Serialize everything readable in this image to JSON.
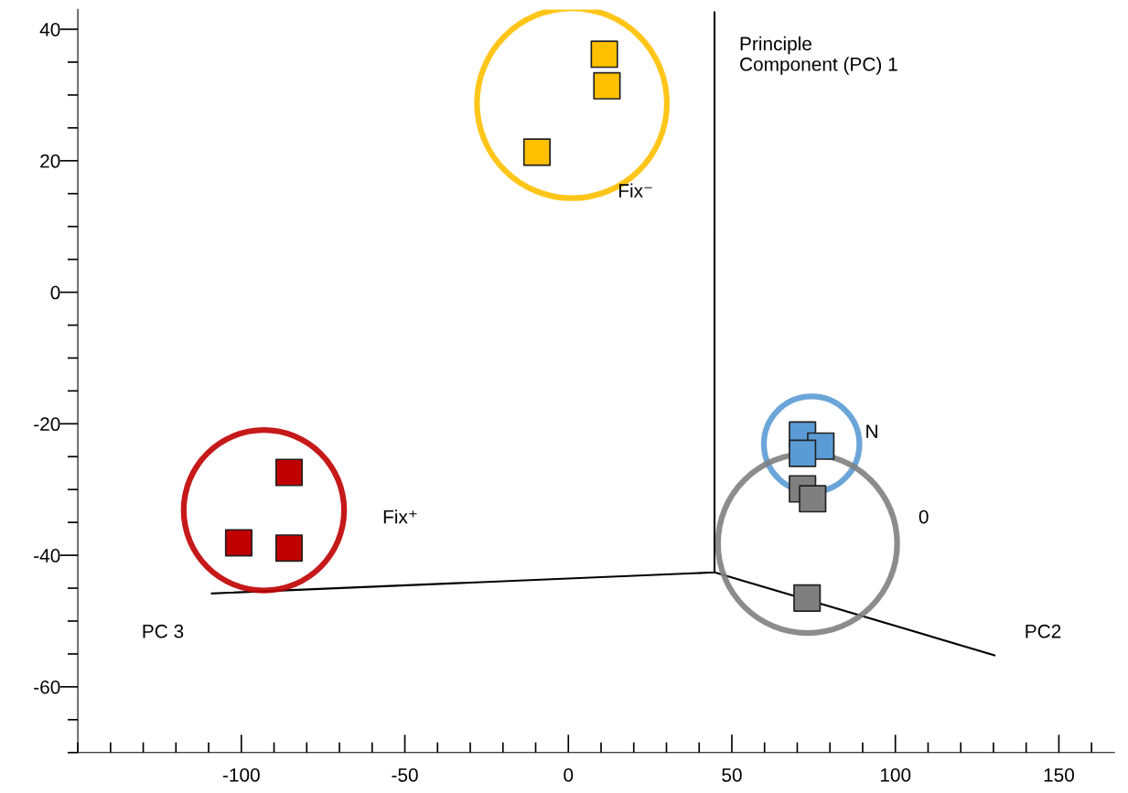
{
  "chart_data": {
    "type": "scatter",
    "marker": "square",
    "grid": false,
    "legend": false,
    "xlim": [
      -150,
      167
    ],
    "ylim": [
      -70,
      43
    ],
    "xticks": [
      {
        "value": -150,
        "label": null
      },
      {
        "value": -140,
        "label": null
      },
      {
        "value": -130,
        "label": null
      },
      {
        "value": -120,
        "label": null
      },
      {
        "value": -110,
        "label": null
      },
      {
        "value": -100,
        "label": "-100"
      },
      {
        "value": -90,
        "label": null
      },
      {
        "value": -80,
        "label": null
      },
      {
        "value": -70,
        "label": null
      },
      {
        "value": -60,
        "label": null
      },
      {
        "value": -50,
        "label": "-50"
      },
      {
        "value": -40,
        "label": null
      },
      {
        "value": -30,
        "label": null
      },
      {
        "value": -20,
        "label": null
      },
      {
        "value": -10,
        "label": null
      },
      0,
      {
        "value": 10,
        "label": null
      },
      {
        "value": 20,
        "label": null
      },
      {
        "value": 30,
        "label": null
      },
      {
        "value": 40,
        "label": null
      },
      50,
      {
        "value": 60,
        "label": null
      },
      {
        "value": 70,
        "label": null
      },
      {
        "value": 80,
        "label": null
      },
      {
        "value": 90,
        "label": null
      },
      100,
      {
        "value": 110,
        "label": null
      },
      {
        "value": 120,
        "label": null
      },
      {
        "value": 130,
        "label": null
      },
      {
        "value": 140,
        "label": null
      },
      150,
      {
        "value": 160,
        "label": null
      }
    ],
    "yticks": [
      {
        "value": -70,
        "label": null
      },
      {
        "value": -65,
        "label": null
      },
      {
        "value": -60,
        "label": "-60"
      },
      {
        "value": -55,
        "label": null
      },
      {
        "value": -50,
        "label": null
      },
      {
        "value": -45,
        "label": null
      },
      {
        "value": -40,
        "label": "-40"
      },
      {
        "value": -35,
        "label": null
      },
      {
        "value": -30,
        "label": null
      },
      {
        "value": -25,
        "label": null
      },
      {
        "value": -20,
        "label": "-20"
      },
      {
        "value": -15,
        "label": null
      },
      {
        "value": -10,
        "label": null
      },
      {
        "value": -5,
        "label": null
      },
      0,
      {
        "value": 5,
        "label": null
      },
      {
        "value": 10,
        "label": null
      },
      {
        "value": 15,
        "label": null
      },
      20,
      {
        "value": 25,
        "label": null
      },
      {
        "value": 30,
        "label": null
      },
      {
        "value": 35,
        "label": null
      },
      40
    ],
    "series": [
      {
        "type": "line",
        "marker": "none",
        "color": "#000000",
        "x": [
          -109,
          44.7,
          44.7,
          44.7,
          130.3
        ],
        "values": [
          -45.8,
          -42.6,
          42.6,
          -42.6,
          -55.2
        ]
      },
      {
        "color": "#ffc000",
        "x": [
          11,
          11.8,
          -9.6
        ],
        "values": [
          36.2,
          31.4,
          21.3
        ]
      },
      {
        "color": "#c00000",
        "x": [
          -85.4,
          -100.8,
          -85.4
        ],
        "values": [
          -27.4,
          -38.1,
          -38.9
        ]
      },
      {
        "color": "#5b9bd5",
        "x": [
          71.6,
          77.2,
          71.6
        ],
        "values": [
          -21.7,
          -23.4,
          -24.5
        ]
      },
      {
        "color": "#7f7f7f",
        "x": [
          71.6,
          74.7,
          73
        ],
        "values": [
          -29.9,
          -31.4,
          -46.5
        ]
      }
    ],
    "annotations": [
      "Principle\nComponent (PC) 1",
      "Fix⁻",
      "Fix⁺",
      "N",
      "0",
      "PC 3",
      "PC2"
    ]
  }
}
